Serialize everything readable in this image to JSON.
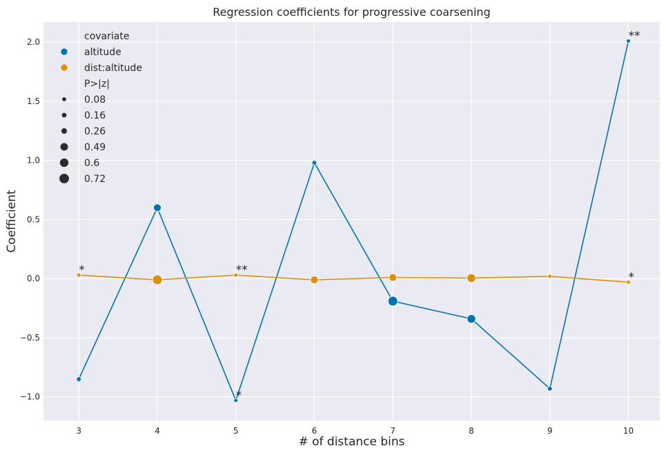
{
  "chart_data": {
    "type": "line",
    "title": "Regression coefficients for progressive coarsening",
    "xlabel": "# of distance bins",
    "ylabel": "Coefficient",
    "x": [
      3,
      4,
      5,
      6,
      7,
      8,
      9,
      10
    ],
    "xlim": [
      2.55,
      10.4
    ],
    "ylim": [
      -1.2,
      2.17
    ],
    "yticks": [
      -1.0,
      -0.5,
      0.0,
      0.5,
      1.0,
      1.5,
      2.0
    ],
    "ytick_labels": [
      "−1.0",
      "−0.5",
      "0.0",
      "0.5",
      "1.0",
      "1.5",
      "2.0"
    ],
    "grid": true,
    "legend_placement": "top-left",
    "background": "#eaeaf2",
    "series": [
      {
        "name": "altitude",
        "color": "#0173b2",
        "values": [
          -0.85,
          0.6,
          -1.03,
          0.98,
          -0.19,
          -0.34,
          -0.93,
          2.01
        ],
        "pvalues": [
          0.16,
          0.49,
          0.08,
          0.16,
          0.72,
          0.6,
          0.16,
          0.08
        ],
        "annotations": [
          "",
          "",
          "*",
          "",
          "",
          "",
          "",
          "**"
        ]
      },
      {
        "name": "dist:altitude",
        "color": "#de8f05",
        "values": [
          0.03,
          -0.01,
          0.03,
          -0.01,
          0.01,
          0.005,
          0.02,
          -0.03
        ],
        "pvalues": [
          0.08,
          0.72,
          0.08,
          0.49,
          0.49,
          0.6,
          0.08,
          0.08
        ],
        "annotations": [
          "*",
          "",
          "**",
          "",
          "",
          "",
          "",
          "*"
        ]
      }
    ],
    "legend": {
      "hue_title": "covariate",
      "size_title": "P>|z|",
      "size_entries": [
        "0.08",
        "0.16",
        "0.26",
        "0.49",
        "0.6",
        "0.72"
      ],
      "size_values": [
        0.08,
        0.16,
        0.26,
        0.49,
        0.6,
        0.72
      ],
      "size_marker_color": "#2b2b2b"
    }
  }
}
